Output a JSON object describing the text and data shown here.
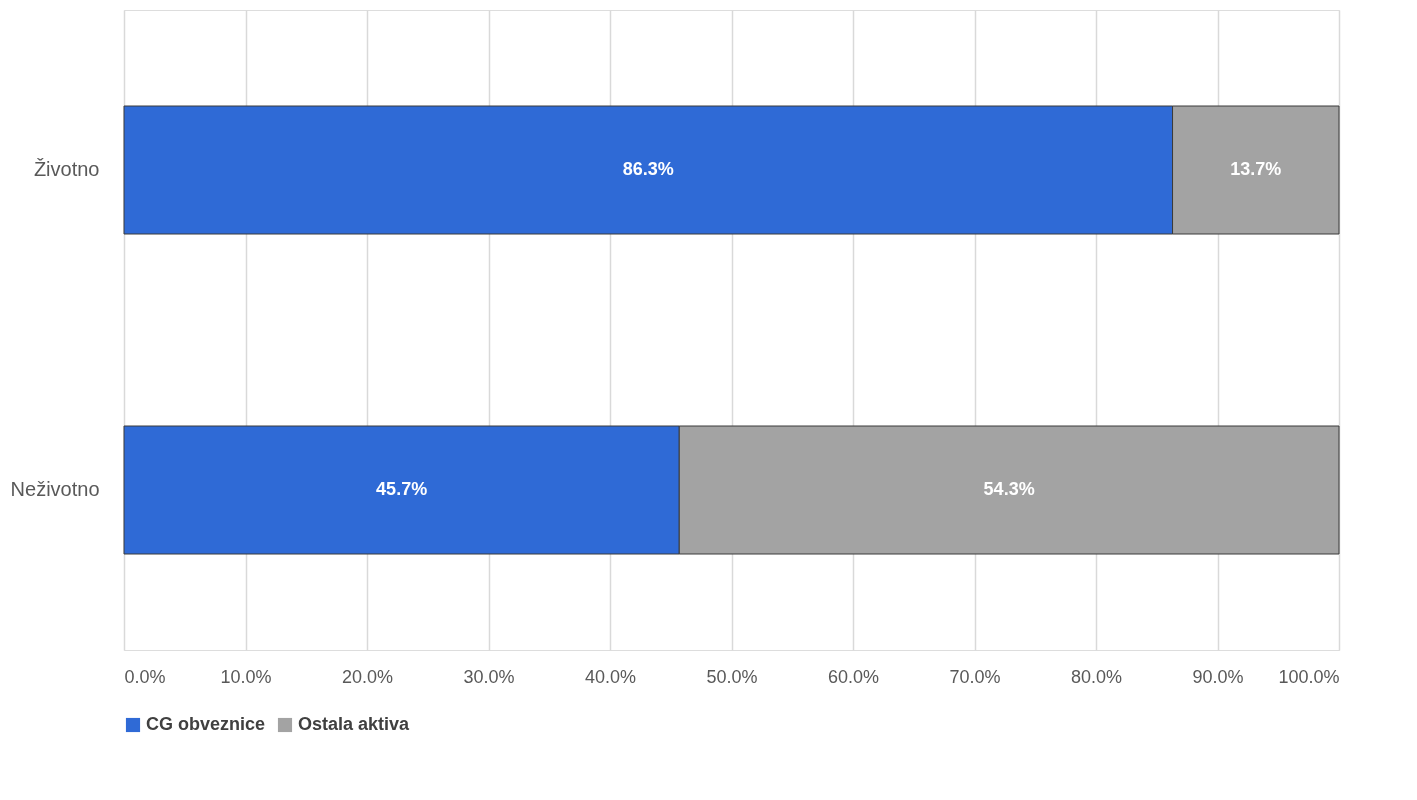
{
  "chart_data": {
    "type": "bar",
    "orientation": "horizontal",
    "stacked": true,
    "categories": [
      "Životno",
      "Neživotno"
    ],
    "series": [
      {
        "name": "CG obveznice",
        "color": "#2f6ad6",
        "values": [
          86.3,
          45.7
        ],
        "value_labels": [
          "86.3%",
          "45.7%"
        ]
      },
      {
        "name": "Ostala aktiva",
        "color": "#a3a3a3",
        "values": [
          13.7,
          54.3
        ],
        "value_labels": [
          "13.7%",
          "54.3%"
        ]
      }
    ],
    "xlim": [
      0,
      100
    ],
    "xticks": [
      {
        "value": 0,
        "label": "0.0%"
      },
      {
        "value": 10,
        "label": "10.0%"
      },
      {
        "value": 20,
        "label": "20.0%"
      },
      {
        "value": 30,
        "label": "30.0%"
      },
      {
        "value": 40,
        "label": "40.0%"
      },
      {
        "value": 50,
        "label": "50.0%"
      },
      {
        "value": 60,
        "label": "60.0%"
      },
      {
        "value": 70,
        "label": "70.0%"
      },
      {
        "value": 80,
        "label": "80.0%"
      },
      {
        "value": 90,
        "label": "90.0%"
      },
      {
        "value": 100,
        "label": "100.0%"
      }
    ],
    "grid": "x",
    "legend": "bottom"
  }
}
